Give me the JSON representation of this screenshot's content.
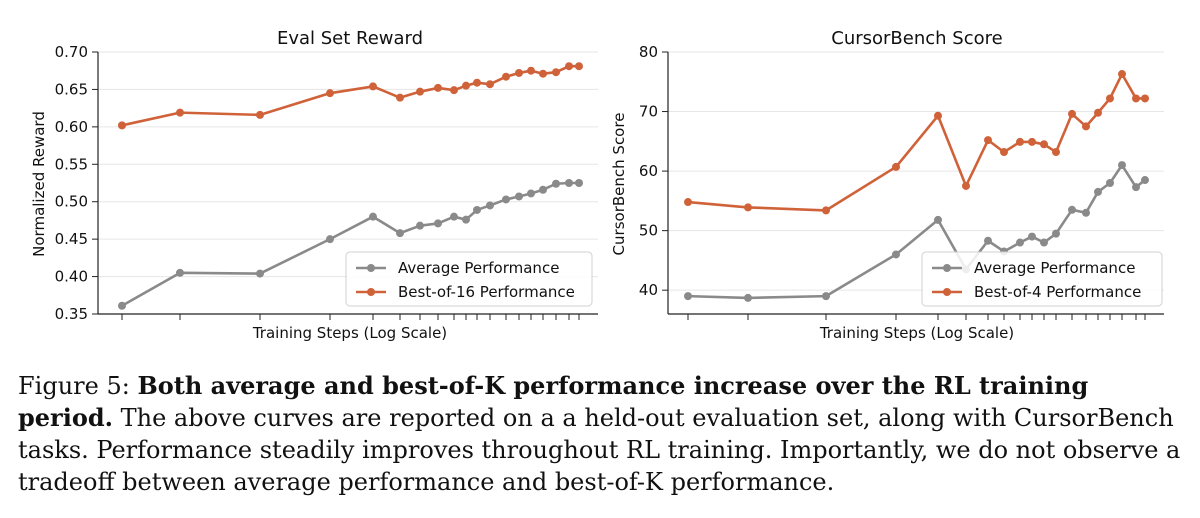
{
  "chart_data": [
    {
      "type": "line",
      "title": "Eval Set Reward",
      "xlabel": "Training Steps (Log Scale)",
      "ylabel": "Normalized Reward",
      "ylim": [
        0.35,
        0.7
      ],
      "yticks": [
        "0.35",
        "0.40",
        "0.45",
        "0.50",
        "0.55",
        "0.60",
        "0.65",
        "0.70"
      ],
      "x_scale": "log",
      "x_tick_labels_shown": false,
      "grid": "horizontal",
      "legend": "lower-right",
      "series": [
        {
          "name": "Average Performance",
          "color": "#8a8a8a",
          "values": [
            0.361,
            0.405,
            0.404,
            0.45,
            0.48,
            0.458,
            0.468,
            0.471,
            0.48,
            0.476,
            0.489,
            0.495,
            0.503,
            0.507,
            0.511,
            0.516,
            0.524,
            0.525,
            0.525
          ]
        },
        {
          "name": "Best-of-16 Performance",
          "color": "#d0623a",
          "values": [
            0.602,
            0.619,
            0.616,
            0.645,
            0.654,
            0.639,
            0.647,
            0.652,
            0.649,
            0.655,
            0.659,
            0.657,
            0.667,
            0.672,
            0.675,
            0.671,
            0.673,
            0.681,
            0.681
          ]
        }
      ]
    },
    {
      "type": "line",
      "title": "CursorBench Score",
      "xlabel": "Training Steps (Log Scale)",
      "ylabel": "CursorBench Score",
      "ylim": [
        36,
        80
      ],
      "yticks": [
        "40",
        "50",
        "60",
        "70",
        "80"
      ],
      "x_scale": "log",
      "x_tick_labels_shown": false,
      "grid": "horizontal",
      "legend": "lower-right",
      "series": [
        {
          "name": "Average Performance",
          "color": "#8a8a8a",
          "values": [
            39.0,
            38.7,
            39.0,
            46.0,
            51.8,
            43.5,
            48.3,
            46.5,
            48.0,
            49.0,
            48.0,
            49.5,
            53.5,
            53.0,
            56.5,
            58.0,
            61.0,
            57.3,
            58.5
          ]
        },
        {
          "name": "Best-of-4 Performance",
          "color": "#d0623a",
          "values": [
            54.8,
            53.9,
            53.4,
            60.7,
            69.3,
            57.5,
            65.2,
            63.2,
            64.9,
            64.9,
            64.5,
            63.2,
            69.6,
            67.5,
            69.8,
            72.2,
            76.3,
            72.2,
            72.2
          ]
        }
      ]
    }
  ],
  "caption": {
    "label": "Figure 5:",
    "bold": "Both average and best-of-K performance increase over the RL training period.",
    "text": "The above curves are reported on a a held-out evaluation set, along with CursorBench tasks. Performance steadily improves throughout RL training. Importantly, we do not observe a tradeoff between average performance and best-of-K performance."
  }
}
